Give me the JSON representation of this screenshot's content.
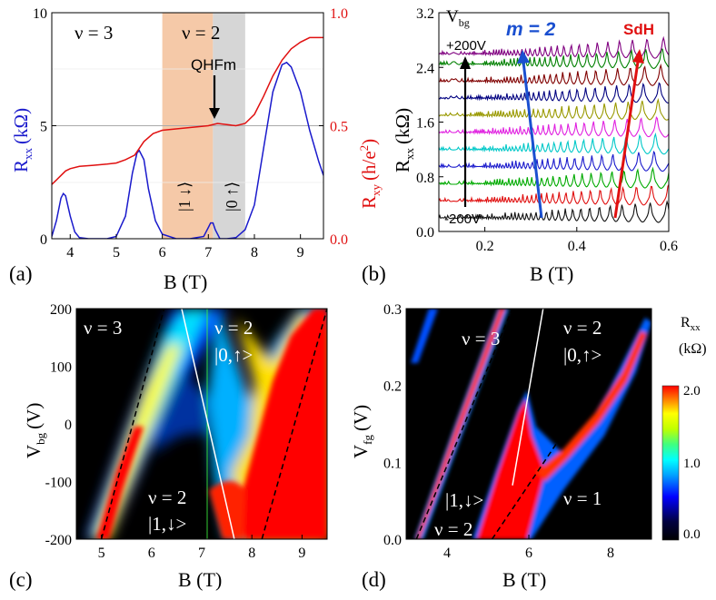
{
  "chart_data": [
    {
      "panel": "a",
      "type": "line",
      "panel_label": "(a)",
      "xlabel": "B (T)",
      "ylabel_left_main": "R",
      "ylabel_left_sub": "xx",
      "ylabel_left_unit": "(kΩ)",
      "ylabel_right_main": "R",
      "ylabel_right_sub": "xy",
      "ylabel_right_unit": "(h/e",
      "ylabel_right_sup": "2",
      "ylabel_right_tail": ")",
      "xlim": [
        3.6,
        9.5
      ],
      "ylim_left": [
        0,
        10
      ],
      "ylim_right": [
        0,
        1.0
      ],
      "x_ticks": [
        4,
        5,
        6,
        7,
        8,
        9
      ],
      "y_ticks_left": [
        0,
        5,
        10
      ],
      "y_ticks_right": [
        "0.0",
        "0.5",
        "1.0"
      ],
      "shaded_regions": [
        {
          "from": 6.0,
          "to": 7.1,
          "color": "#f5c9a8"
        },
        {
          "from": 7.1,
          "to": 7.8,
          "color": "#d6d6d6"
        }
      ],
      "annotations": {
        "nu3": "ν = 3",
        "nu2": "ν = 2",
        "qhfm": "QHFm",
        "level_down": "|1 ↓⟩",
        "level_up": "|0 ↑⟩"
      },
      "colors": {
        "rxx": "#1a1acc",
        "rxy": "#e01010",
        "right_axis": "#e01010",
        "left_axis": "#1a1acc"
      },
      "series": [
        {
          "name": "Rxx",
          "axis": "left",
          "x": [
            3.6,
            3.7,
            3.8,
            3.85,
            3.9,
            4.0,
            4.1,
            4.2,
            4.4,
            4.8,
            5.0,
            5.2,
            5.35,
            5.45,
            5.5,
            5.6,
            5.7,
            5.85,
            6.0,
            6.3,
            6.6,
            6.9,
            7.0,
            7.05,
            7.1,
            7.15,
            7.25,
            7.4,
            7.6,
            7.8,
            8.0,
            8.2,
            8.4,
            8.6,
            8.7,
            8.8,
            9.0,
            9.2,
            9.4,
            9.5
          ],
          "values": [
            0.1,
            0.8,
            1.8,
            2.0,
            1.9,
            1.0,
            0.3,
            0.05,
            0.0,
            0.0,
            0.1,
            1.0,
            2.9,
            3.8,
            3.9,
            3.5,
            2.2,
            0.8,
            0.2,
            0.0,
            0.0,
            0.1,
            0.5,
            0.7,
            0.7,
            0.4,
            0.0,
            0.0,
            0.05,
            0.4,
            1.5,
            4.0,
            6.5,
            7.7,
            7.8,
            7.6,
            6.5,
            4.8,
            3.4,
            2.8
          ]
        },
        {
          "name": "Rxy",
          "axis": "right",
          "x": [
            3.6,
            3.7,
            3.8,
            3.9,
            4.0,
            4.2,
            4.5,
            4.8,
            5.0,
            5.2,
            5.4,
            5.5,
            5.6,
            5.8,
            6.0,
            6.5,
            7.0,
            7.2,
            7.4,
            7.6,
            7.8,
            8.0,
            8.2,
            8.4,
            8.6,
            8.8,
            9.0,
            9.2,
            9.4,
            9.5
          ],
          "values": [
            0.24,
            0.26,
            0.28,
            0.3,
            0.31,
            0.32,
            0.325,
            0.33,
            0.335,
            0.35,
            0.37,
            0.4,
            0.43,
            0.465,
            0.48,
            0.49,
            0.5,
            0.51,
            0.505,
            0.5,
            0.51,
            0.55,
            0.63,
            0.72,
            0.79,
            0.84,
            0.87,
            0.89,
            0.89,
            0.89
          ]
        }
      ],
      "reference_lines": [
        {
          "axis": "right",
          "value": 0.5
        }
      ]
    },
    {
      "panel": "b",
      "type": "line",
      "panel_label": "(b)",
      "xlabel": "B (T)",
      "ylabel_main": "R",
      "ylabel_sub": "xx",
      "ylabel_unit": "(kΩ)",
      "xlim": [
        0.1,
        0.6
      ],
      "ylim": [
        0.0,
        3.2
      ],
      "x_ticks": [
        "0.2",
        "0.4",
        "0.6"
      ],
      "y_ticks": [
        "0.0",
        "0.8",
        "1.6",
        "2.4",
        "3.2"
      ],
      "annotations": {
        "vbg_main": "V",
        "vbg_sub": "bg",
        "top": "+200V",
        "bottom": "-200V",
        "m2": "m = 2",
        "sdh": "SdH"
      },
      "offsets": [
        0.2,
        0.45,
        0.7,
        0.95,
        1.2,
        1.45,
        1.7,
        1.95,
        2.2,
        2.45,
        2.6
      ],
      "trace_colors": [
        "#111111",
        "#e01010",
        "#00aa00",
        "#1a1acc",
        "#00c8c8",
        "#e020e0",
        "#999900",
        "#000080",
        "#800000",
        "#008000",
        "#800080"
      ],
      "arrows": {
        "vbg_color": "#000000",
        "m2_color": "#1a4fd0",
        "sdh_color": "#e01010"
      }
    },
    {
      "panel": "c",
      "type": "heatmap",
      "panel_label": "(c)",
      "xlabel": "B (T)",
      "ylabel_main": "V",
      "ylabel_sub": "bg",
      "ylabel_unit": "(V)",
      "xlim": [
        4.5,
        9.5
      ],
      "ylim": [
        -200,
        200
      ],
      "x_ticks": [
        5,
        6,
        7,
        8,
        9
      ],
      "y_ticks": [
        -200,
        -100,
        0,
        100,
        200
      ],
      "annotations": {
        "nu3": "ν = 3",
        "nu2_top": "ν = 2",
        "state_up": "|0,↑>",
        "nu2_bottom": "ν = 2",
        "state_down": "|1,↓>"
      }
    },
    {
      "panel": "d",
      "type": "heatmap",
      "panel_label": "(d)",
      "xlabel": "B (T)",
      "ylabel_main": "V",
      "ylabel_sub": "fg",
      "ylabel_unit": "(V)",
      "xlim": [
        3.0,
        9.0
      ],
      "ylim": [
        0.0,
        0.3
      ],
      "x_ticks": [
        4,
        6,
        8
      ],
      "y_ticks": [
        "0.0",
        "0.1",
        "0.2",
        "0.3"
      ],
      "annotations": {
        "nu3": "ν = 3",
        "nu2_top": "ν = 2",
        "state_up": "|0,↑>",
        "state_down": "|1,↓>",
        "nu2_bottom": "ν = 2",
        "nu1": "ν = 1"
      },
      "colorbar": {
        "title_main": "R",
        "title_sub": "xx",
        "title_unit": "(kΩ)",
        "ticks": [
          "0.0",
          "1.0",
          "2.0"
        ],
        "range": [
          0.0,
          2.0
        ]
      }
    }
  ]
}
